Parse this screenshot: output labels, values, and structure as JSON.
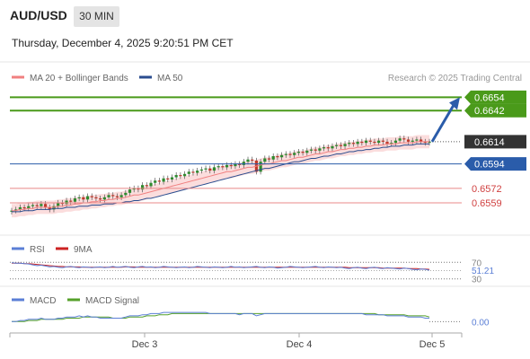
{
  "header": {
    "symbol": "AUD/USD",
    "timeframe": "30 MIN",
    "datetime": "Thursday, December 4, 2025 9:20:51 PM CET"
  },
  "legend": {
    "ma20": "MA 20 + Bollinger Bands",
    "ma50": "MA 50",
    "credit": "Research © 2025 Trading Central",
    "rsi": "RSI",
    "rsi_ma": "9MA",
    "macd": "MACD",
    "macd_signal": "MACD Signal"
  },
  "colors": {
    "up": "#2e8b2e",
    "down": "#c0392b",
    "ma20": "#f08080",
    "ma50": "#2a4d8f",
    "band": "#f9d2d2",
    "green_level": "#4a9a1a",
    "blue_level": "#2a5caa",
    "red_level": "#e88888",
    "current": "#333333",
    "rsi": "#5b7fd6",
    "rsi_ma": "#cc2222",
    "macd": "#5b7fd6",
    "macd_signal": "#55a02a"
  },
  "chart_data": [
    {
      "type": "candlestick",
      "panel": "price",
      "ylim": [
        0.6538,
        0.6664
      ],
      "x_tick_labels": [
        "Dec 3",
        "Dec 4",
        "Dec 5"
      ],
      "levels": [
        {
          "label": "0.6654",
          "value": 0.6654,
          "kind": "target"
        },
        {
          "label": "0.6642",
          "value": 0.6642,
          "kind": "target"
        },
        {
          "label": "0.6614",
          "value": 0.6614,
          "kind": "current"
        },
        {
          "label": "0.6594",
          "value": 0.6594,
          "kind": "pivot"
        },
        {
          "label": "0.6572",
          "value": 0.6572,
          "kind": "support"
        },
        {
          "label": "0.6559",
          "value": 0.6559,
          "kind": "support"
        }
      ],
      "arrow": {
        "from": 0.6614,
        "to": 0.6654
      },
      "close": [
        0.6552,
        0.6553,
        0.6555,
        0.6554,
        0.6556,
        0.6557,
        0.6556,
        0.6558,
        0.6555,
        0.6553,
        0.6556,
        0.6559,
        0.6558,
        0.6561,
        0.656,
        0.6563,
        0.6564,
        0.6562,
        0.6565,
        0.6564,
        0.6563,
        0.6562,
        0.6564,
        0.6566,
        0.6565,
        0.6564,
        0.6566,
        0.6568,
        0.6571,
        0.6572,
        0.6571,
        0.6575,
        0.6574,
        0.6577,
        0.6579,
        0.6578,
        0.6581,
        0.658,
        0.6582,
        0.6584,
        0.6583,
        0.6585,
        0.6587,
        0.6586,
        0.6588,
        0.6589,
        0.659,
        0.6588,
        0.6591,
        0.6592,
        0.6591,
        0.6593,
        0.6592,
        0.6594,
        0.6593,
        0.6596,
        0.6598,
        0.6597,
        0.6587,
        0.6596,
        0.6599,
        0.6598,
        0.6601,
        0.66,
        0.6602,
        0.6603,
        0.6602,
        0.6604,
        0.6605,
        0.6604,
        0.6606,
        0.6607,
        0.6606,
        0.6608,
        0.6609,
        0.6608,
        0.661,
        0.6611,
        0.661,
        0.6612,
        0.6613,
        0.6612,
        0.6614,
        0.6613,
        0.6615,
        0.6614,
        0.6613,
        0.6615,
        0.6614,
        0.6612,
        0.6613,
        0.6615,
        0.6617,
        0.6616,
        0.6614,
        0.6615,
        0.6616,
        0.6614,
        0.6613,
        0.6614
      ],
      "ma20": [
        0.6552,
        0.6552,
        0.6553,
        0.6553,
        0.6554,
        0.6554,
        0.6555,
        0.6555,
        0.6555,
        0.6555,
        0.6555,
        0.6556,
        0.6556,
        0.6557,
        0.6557,
        0.6558,
        0.6558,
        0.6559,
        0.6559,
        0.656,
        0.656,
        0.6561,
        0.6561,
        0.6562,
        0.6562,
        0.6563,
        0.6563,
        0.6564,
        0.6565,
        0.6566,
        0.6566,
        0.6567,
        0.6568,
        0.6569,
        0.657,
        0.6571,
        0.6572,
        0.6573,
        0.6574,
        0.6575,
        0.6576,
        0.6577,
        0.6578,
        0.6579,
        0.658,
        0.6581,
        0.6582,
        0.6583,
        0.6584,
        0.6585,
        0.6586,
        0.6587,
        0.6587,
        0.6588,
        0.6589,
        0.659,
        0.6591,
        0.6591,
        0.6592,
        0.6593,
        0.6594,
        0.6594,
        0.6595,
        0.6596,
        0.6597,
        0.6597,
        0.6598,
        0.6599,
        0.66,
        0.66,
        0.6601,
        0.6602,
        0.6603,
        0.6603,
        0.6604,
        0.6605,
        0.6605,
        0.6606,
        0.6607,
        0.6607,
        0.6608,
        0.6608,
        0.6609,
        0.6609,
        0.661,
        0.661,
        0.6611,
        0.6611,
        0.6611,
        0.6612,
        0.6612,
        0.6612,
        0.6613,
        0.6613,
        0.6613,
        0.6613,
        0.6614,
        0.6614,
        0.6614,
        0.6614
      ],
      "ma50": [
        0.6551,
        0.6551,
        0.6551,
        0.6552,
        0.6552,
        0.6552,
        0.6553,
        0.6553,
        0.6553,
        0.6553,
        0.6554,
        0.6554,
        0.6554,
        0.6555,
        0.6555,
        0.6555,
        0.6556,
        0.6556,
        0.6556,
        0.6557,
        0.6557,
        0.6557,
        0.6558,
        0.6558,
        0.6558,
        0.6559,
        0.6559,
        0.656,
        0.656,
        0.6561,
        0.6561,
        0.6562,
        0.6563,
        0.6563,
        0.6564,
        0.6565,
        0.6566,
        0.6567,
        0.6568,
        0.6569,
        0.657,
        0.6571,
        0.6572,
        0.6573,
        0.6574,
        0.6575,
        0.6576,
        0.6577,
        0.6578,
        0.6579,
        0.658,
        0.6581,
        0.6582,
        0.6583,
        0.6584,
        0.6585,
        0.6586,
        0.6587,
        0.6588,
        0.6589,
        0.659,
        0.659,
        0.6591,
        0.6592,
        0.6593,
        0.6594,
        0.6595,
        0.6596,
        0.6596,
        0.6597,
        0.6598,
        0.6599,
        0.6599,
        0.66,
        0.6601,
        0.6601,
        0.6602,
        0.6603,
        0.6603,
        0.6604,
        0.6605,
        0.6605,
        0.6606,
        0.6606,
        0.6607,
        0.6607,
        0.6608,
        0.6608,
        0.6609,
        0.6609,
        0.661,
        0.661,
        0.661,
        0.6611,
        0.6611,
        0.6611,
        0.6612,
        0.6612,
        0.6612,
        0.6612
      ],
      "band_half_width": 0.0006
    },
    {
      "type": "line",
      "panel": "rsi",
      "ylim": [
        25,
        75
      ],
      "y_ticks": [
        "70",
        "30"
      ],
      "last_value_label": "51.21",
      "series": [
        {
          "name": "RSI",
          "values": [
            69,
            68,
            68,
            67,
            66,
            64,
            62,
            63,
            61,
            59,
            60,
            58,
            57,
            59,
            60,
            58,
            57,
            59,
            58,
            57,
            58,
            59,
            57,
            58,
            60,
            58,
            59,
            60,
            58,
            57,
            59,
            60,
            58,
            59,
            57,
            58,
            60,
            59,
            58,
            57,
            58,
            59,
            57,
            58,
            60,
            59,
            58,
            57,
            59,
            58,
            57,
            58,
            60,
            58,
            59,
            57,
            58,
            59,
            60,
            58,
            57,
            59,
            58,
            56,
            57,
            58,
            60,
            59,
            58,
            57,
            58,
            59,
            60,
            58,
            57,
            59,
            58,
            57,
            58,
            56,
            55,
            57,
            58,
            56,
            55,
            57,
            58,
            56,
            55,
            57,
            56,
            55,
            54,
            56,
            55,
            53,
            52,
            54,
            53,
            51
          ]
        },
        {
          "name": "9MA",
          "values": [
            68,
            68,
            68,
            67,
            67,
            66,
            65,
            64,
            63,
            62,
            61,
            60,
            60,
            59,
            59,
            59,
            59,
            58,
            58,
            58,
            58,
            58,
            58,
            58,
            58,
            58,
            58,
            59,
            59,
            59,
            58,
            58,
            58,
            58,
            58,
            58,
            58,
            58,
            58,
            58,
            58,
            58,
            58,
            58,
            58,
            58,
            58,
            58,
            58,
            58,
            58,
            58,
            58,
            58,
            58,
            58,
            58,
            58,
            58,
            58,
            58,
            58,
            58,
            58,
            58,
            58,
            58,
            58,
            58,
            58,
            58,
            58,
            58,
            58,
            58,
            58,
            58,
            58,
            58,
            58,
            57,
            57,
            57,
            57,
            57,
            57,
            57,
            57,
            56,
            56,
            56,
            56,
            56,
            56,
            55,
            55,
            55,
            54,
            54,
            53
          ]
        }
      ]
    },
    {
      "type": "line",
      "panel": "macd",
      "ylim": [
        -0.0006,
        0.0012
      ],
      "last_value_label": "0.00",
      "series": [
        {
          "name": "MACD",
          "values": [
            0.0,
            0.0,
            0.0001,
            0.0001,
            0.0002,
            0.0002,
            0.0002,
            0.0003,
            0.0002,
            0.0002,
            0.0002,
            0.0003,
            0.0003,
            0.0004,
            0.0004,
            0.0004,
            0.0005,
            0.0004,
            0.0005,
            0.0004,
            0.0004,
            0.0003,
            0.0003,
            0.0003,
            0.0003,
            0.0003,
            0.0003,
            0.0004,
            0.0005,
            0.0005,
            0.0005,
            0.0006,
            0.0006,
            0.0007,
            0.0007,
            0.0007,
            0.0008,
            0.0008,
            0.0008,
            0.0008,
            0.0008,
            0.0008,
            0.0008,
            0.0008,
            0.0008,
            0.0008,
            0.0008,
            0.0007,
            0.0007,
            0.0007,
            0.0007,
            0.0007,
            0.0007,
            0.0007,
            0.0006,
            0.0007,
            0.0007,
            0.0007,
            0.0005,
            0.0006,
            0.0007,
            0.0007,
            0.0007,
            0.0007,
            0.0007,
            0.0007,
            0.0007,
            0.0007,
            0.0007,
            0.0007,
            0.0007,
            0.0007,
            0.0007,
            0.0007,
            0.0007,
            0.0007,
            0.0007,
            0.0007,
            0.0007,
            0.0007,
            0.0007,
            0.0007,
            0.0007,
            0.0007,
            0.0006,
            0.0006,
            0.0006,
            0.0006,
            0.0006,
            0.0005,
            0.0005,
            0.0005,
            0.0005,
            0.0005,
            0.0004,
            0.0004,
            0.0004,
            0.0004,
            0.0003,
            0.0003
          ]
        },
        {
          "name": "MACD Signal",
          "values": [
            0.0,
            0.0,
            0.0,
            0.0,
            0.0001,
            0.0001,
            0.0001,
            0.0002,
            0.0002,
            0.0002,
            0.0002,
            0.0002,
            0.0002,
            0.0003,
            0.0003,
            0.0003,
            0.0003,
            0.0004,
            0.0004,
            0.0004,
            0.0004,
            0.0004,
            0.0004,
            0.0004,
            0.0003,
            0.0003,
            0.0003,
            0.0003,
            0.0004,
            0.0004,
            0.0004,
            0.0004,
            0.0005,
            0.0005,
            0.0005,
            0.0006,
            0.0006,
            0.0006,
            0.0007,
            0.0007,
            0.0007,
            0.0007,
            0.0007,
            0.0007,
            0.0007,
            0.0007,
            0.0007,
            0.0007,
            0.0007,
            0.0007,
            0.0007,
            0.0007,
            0.0007,
            0.0007,
            0.0007,
            0.0007,
            0.0007,
            0.0007,
            0.0007,
            0.0007,
            0.0007,
            0.0007,
            0.0007,
            0.0007,
            0.0007,
            0.0007,
            0.0007,
            0.0007,
            0.0007,
            0.0007,
            0.0007,
            0.0007,
            0.0007,
            0.0007,
            0.0007,
            0.0007,
            0.0007,
            0.0007,
            0.0007,
            0.0007,
            0.0007,
            0.0007,
            0.0007,
            0.0007,
            0.0007,
            0.0007,
            0.0007,
            0.0006,
            0.0006,
            0.0006,
            0.0006,
            0.0006,
            0.0006,
            0.0006,
            0.0005,
            0.0005,
            0.0005,
            0.0005,
            0.0005,
            0.0004
          ]
        }
      ]
    }
  ]
}
